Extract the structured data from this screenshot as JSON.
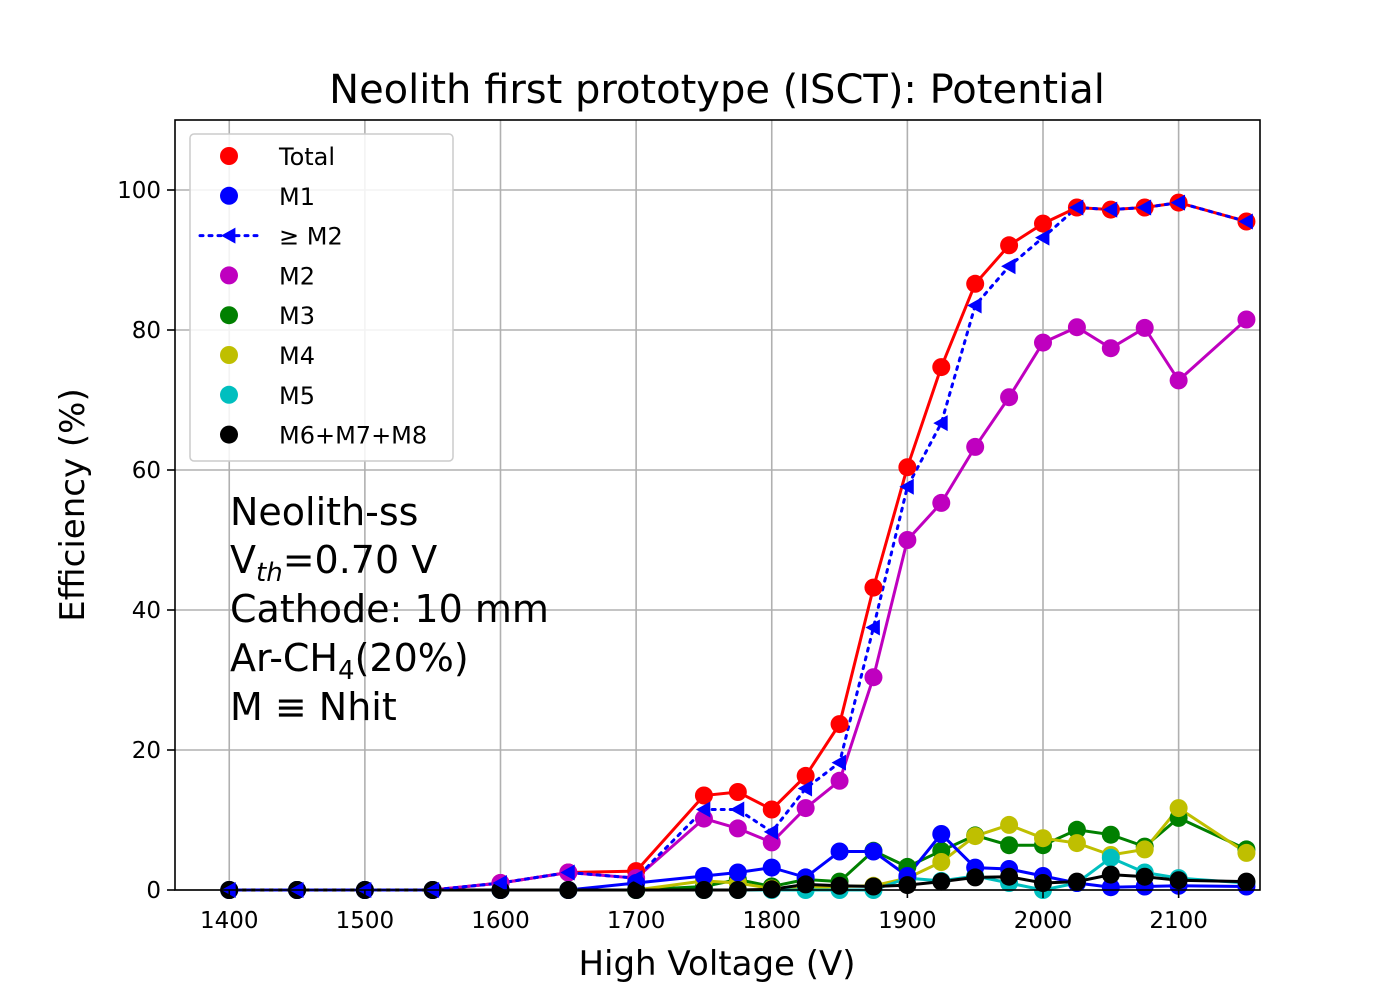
{
  "chart_data": {
    "type": "line",
    "title": "Neolith first prototype (ISCT): Potential",
    "xlabel": "High Voltage (V)",
    "ylabel": "Efficiency (%)",
    "xlim": [
      1360,
      2160
    ],
    "ylim": [
      0,
      110
    ],
    "xticks": [
      1400,
      1500,
      1600,
      1700,
      1800,
      1900,
      2000,
      2100
    ],
    "yticks": [
      0,
      20,
      40,
      60,
      80,
      100
    ],
    "grid": true,
    "legend_position": "top-left",
    "x": [
      1400,
      1450,
      1500,
      1550,
      1600,
      1650,
      1700,
      1750,
      1775,
      1800,
      1825,
      1850,
      1875,
      1900,
      1925,
      1950,
      1975,
      2000,
      2025,
      2050,
      2075,
      2100,
      2150
    ],
    "series": [
      {
        "name": "Total",
        "color": "#ff0000",
        "marker": "circle",
        "line": "solid",
        "values": [
          0,
          0,
          0,
          0,
          1,
          2.5,
          2.7,
          13.5,
          14,
          11.5,
          16.3,
          23.7,
          43.2,
          60.4,
          74.7,
          86.6,
          92.1,
          95.2,
          97.5,
          97.2,
          97.5,
          98.2,
          95.5
        ]
      },
      {
        "name": "M1",
        "color": "#0000ff",
        "marker": "circle",
        "line": "solid",
        "values": [
          0,
          0,
          0,
          0,
          0,
          0,
          1,
          2,
          2.5,
          3.2,
          1.8,
          5.5,
          5.5,
          2,
          8,
          3.2,
          3,
          2,
          1,
          0.4,
          0.5,
          0.6,
          0.5
        ]
      },
      {
        "name": "≥ M2",
        "color": "#0000ff",
        "marker": "triangle-left",
        "line": "dotted",
        "values": [
          0,
          0,
          0,
          0,
          1,
          2.5,
          1.7,
          11.5,
          11.5,
          8.3,
          14.5,
          18.2,
          37.5,
          57.6,
          66.7,
          83.5,
          89.1,
          93.2,
          97.5,
          97.2,
          97.5,
          98.2,
          95.5
        ]
      },
      {
        "name": "M2",
        "color": "#bf00bf",
        "marker": "circle",
        "line": "solid",
        "values": [
          0,
          0,
          0,
          0,
          1,
          2.5,
          1.7,
          10.2,
          8.8,
          6.8,
          11.7,
          15.6,
          30.4,
          50,
          55.3,
          63.3,
          70.4,
          78.2,
          80.4,
          77.4,
          80.3,
          72.8,
          81.5
        ]
      },
      {
        "name": "M3",
        "color": "#008000",
        "marker": "circle",
        "line": "solid",
        "values": [
          0,
          0,
          0,
          0,
          0,
          0,
          0,
          0.5,
          1.5,
          0.5,
          1.5,
          1.2,
          5.6,
          3.3,
          5.6,
          7.8,
          6.4,
          6.4,
          8.6,
          7.9,
          6.2,
          10.3,
          5.8
        ]
      },
      {
        "name": "M4",
        "color": "#bfbf00",
        "marker": "circle",
        "line": "solid",
        "values": [
          0,
          0,
          0,
          0,
          0,
          0,
          0,
          1.3,
          1,
          0.2,
          0.3,
          0.5,
          0.6,
          1.7,
          4,
          7.7,
          9.3,
          7.4,
          6.7,
          5,
          5.8,
          11.7,
          5.3
        ]
      },
      {
        "name": "M5",
        "color": "#00bfbf",
        "marker": "circle",
        "line": "solid",
        "values": [
          0,
          0,
          0,
          0,
          0,
          0,
          0,
          0,
          0,
          0,
          0,
          0,
          0,
          1.7,
          1.3,
          2,
          1,
          0,
          1,
          4.6,
          2.5,
          1.7,
          1
        ]
      },
      {
        "name": "M6+M7+M8",
        "color": "#000000",
        "marker": "circle",
        "line": "solid",
        "values": [
          0,
          0,
          0,
          0,
          0,
          0,
          0,
          0,
          0,
          0.1,
          0.8,
          0.6,
          0.5,
          0.7,
          1.2,
          1.8,
          1.9,
          1,
          1.2,
          2.2,
          1.9,
          1.4,
          1.2
        ]
      }
    ]
  },
  "annotations": {
    "label_neolith": "Neolith-ss",
    "vth_main": "V",
    "vth_sub": "th",
    "vth_value": "=0.70 V",
    "cathode": "Cathode: 10 mm",
    "gas_main": "Ar-CH",
    "gas_sub": "4",
    "gas_rest": "(20%)",
    "m_def": "M ≡ Nhit",
    "color_orange": "#ffa500",
    "color_blue": "#0000ff"
  }
}
